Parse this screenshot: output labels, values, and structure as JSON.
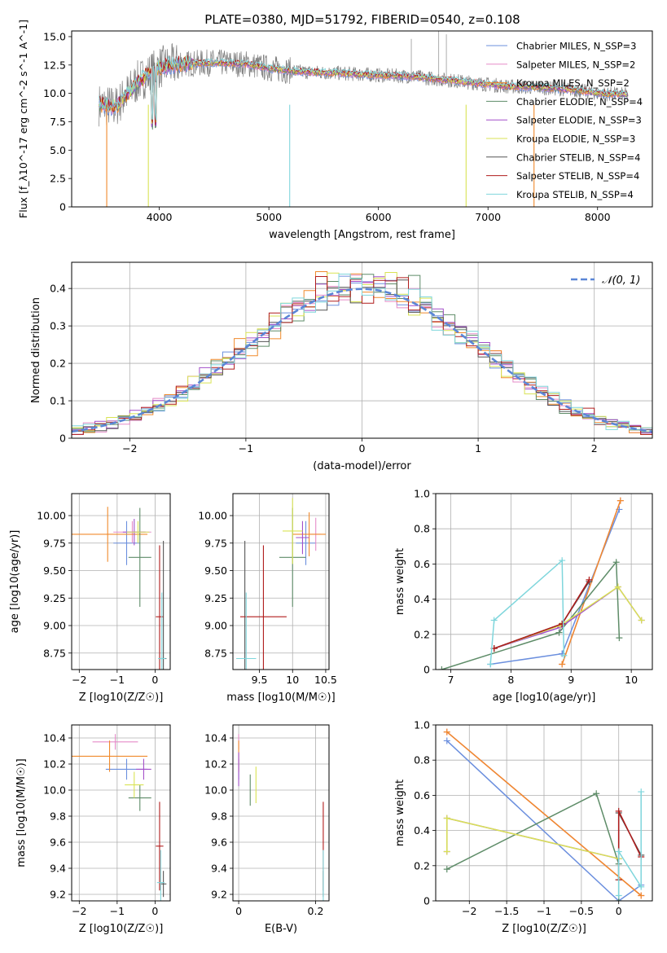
{
  "figure": {
    "title": "PLATE=0380, MJD=51792, FIBERID=0540, z=0.108"
  },
  "chart_data": [
    {
      "id": "spectrum",
      "type": "line",
      "xlabel": "wavelength [Angstrom, rest frame]",
      "ylabel": "Flux [f_λ10^-17 erg cm^-2 s^-1 A^-1]",
      "xlim": [
        3200,
        8500
      ],
      "ylim": [
        0,
        15.5
      ],
      "xticks": [
        4000,
        5000,
        6000,
        7000,
        8000
      ],
      "yticks": [
        0.0,
        2.5,
        5.0,
        7.5,
        10.0,
        12.5,
        15.0
      ],
      "grid": false,
      "legend": "top-right",
      "series": [
        {
          "name": "Chabrier MILES, N_SSP=3",
          "color": "#6b8fde"
        },
        {
          "name": "Salpeter MILES, N_SSP=2",
          "color": "#e58bc8"
        },
        {
          "name": "Kroupa MILES, N_SSP=2",
          "color": "#f08a2c"
        },
        {
          "name": "Chabrier ELODIE, N_SSP=4",
          "color": "#5e8c68"
        },
        {
          "name": "Salpeter ELODIE, N_SSP=3",
          "color": "#a34fc9"
        },
        {
          "name": "Kroupa ELODIE, N_SSP=3",
          "color": "#d9e354"
        },
        {
          "name": "Chabrier STELIB, N_SSP=4",
          "color": "#555555"
        },
        {
          "name": "Salpeter STELIB, N_SSP=4",
          "color": "#b01c1c"
        },
        {
          "name": "Kroupa STELIB, N_SSP=4",
          "color": "#7fd6dc"
        }
      ],
      "spectrum_model": {
        "x": [
          3450,
          3600,
          3800,
          4000,
          4200,
          4500,
          4800,
          5000,
          5300,
          5600,
          6000,
          6300,
          6600,
          6900,
          7200,
          7500,
          7800,
          8000,
          8250
        ],
        "y": [
          9.0,
          8.8,
          11.0,
          12.3,
          12.6,
          12.7,
          12.6,
          12.2,
          11.9,
          11.8,
          11.6,
          11.5,
          11.2,
          10.9,
          10.6,
          10.5,
          10.3,
          10.0,
          9.9
        ]
      },
      "observed_noise_amplitude": 2.4
    },
    {
      "id": "residuals",
      "type": "line",
      "xlabel": "(data-model)/error",
      "ylabel": "Normed distribution",
      "xlim": [
        -2.5,
        2.5
      ],
      "ylim": [
        0,
        0.47
      ],
      "xticks": [
        -2,
        -1,
        0,
        1,
        2
      ],
      "yticks": [
        0.0,
        0.1,
        0.2,
        0.3,
        0.4
      ],
      "grid": true,
      "legend": "top-right",
      "reference": {
        "name": "𝒩(0, 1)",
        "color": "#5b86d6"
      },
      "bin_width": 0.1
    },
    {
      "id": "age-vs-Z",
      "type": "scatter",
      "xlabel": "Z [log10(Z/Z☉)]",
      "ylabel": "age  [log10(age/yr)]",
      "xlim": [
        -2.2,
        0.4
      ],
      "ylim": [
        8.6,
        10.2
      ],
      "xticks": [
        -2,
        -1,
        0
      ],
      "yticks": [
        8.75,
        9.0,
        9.25,
        9.5,
        9.75,
        10.0
      ],
      "grid": true,
      "points": [
        {
          "name": "Chabrier MILES",
          "color": "#6b8fde",
          "x": -0.75,
          "y": 9.75,
          "xerr": 0.35,
          "yerr": 0.2
        },
        {
          "name": "Salpeter MILES",
          "color": "#e58bc8",
          "x": -0.6,
          "y": 9.85,
          "xerr": 0.5,
          "yerr": 0.1
        },
        {
          "name": "Kroupa MILES",
          "color": "#f08a2c",
          "x": -1.25,
          "y": 9.83,
          "xerr": 1.05,
          "yerr": 0.25
        },
        {
          "name": "Chabrier ELODIE",
          "color": "#5e8c68",
          "x": -0.4,
          "y": 9.62,
          "xerr": 0.3,
          "yerr": 0.45
        },
        {
          "name": "Salpeter ELODIE",
          "color": "#a34fc9",
          "x": -0.55,
          "y": 9.85,
          "xerr": 0.3,
          "yerr": 0.12
        },
        {
          "name": "Kroupa ELODIE",
          "color": "#d9e354",
          "x": -0.45,
          "y": 9.85,
          "xerr": 0.3,
          "yerr": 0.1
        },
        {
          "name": "Chabrier STELIB",
          "color": "#555555",
          "x": 0.22,
          "y": 8.7,
          "xerr": 0.08,
          "yerr": 1.07
        },
        {
          "name": "Salpeter STELIB",
          "color": "#b01c1c",
          "x": 0.12,
          "y": 9.08,
          "xerr": 0.1,
          "yerr": 0.65
        },
        {
          "name": "Kroupa STELIB",
          "color": "#7fd6dc",
          "x": 0.18,
          "y": 8.7,
          "xerr": 0.1,
          "yerr": 0.6
        }
      ]
    },
    {
      "id": "age-vs-mass",
      "type": "scatter",
      "xlabel": "mass [log10(M/M☉)]",
      "ylabel": "",
      "xlim": [
        9.1,
        10.55
      ],
      "ylim": [
        8.6,
        10.2
      ],
      "xticks": [
        9.5,
        10.0,
        10.5
      ],
      "yticks": [
        8.75,
        9.0,
        9.25,
        9.5,
        9.75,
        10.0
      ],
      "grid": true,
      "points": [
        {
          "name": "Chabrier MILES",
          "color": "#6b8fde",
          "x": 10.2,
          "y": 9.75,
          "xerr": 0.15,
          "yerr": 0.2
        },
        {
          "name": "Salpeter MILES",
          "color": "#e58bc8",
          "x": 10.35,
          "y": 9.83,
          "xerr": 0.08,
          "yerr": 0.15
        },
        {
          "name": "Kroupa MILES",
          "color": "#f08a2c",
          "x": 10.25,
          "y": 9.83,
          "xerr": 0.25,
          "yerr": 0.2
        },
        {
          "name": "Chabrier ELODIE",
          "color": "#5e8c68",
          "x": 10.0,
          "y": 9.62,
          "xerr": 0.2,
          "yerr": 0.45
        },
        {
          "name": "Salpeter ELODIE",
          "color": "#a34fc9",
          "x": 10.15,
          "y": 9.8,
          "xerr": 0.1,
          "yerr": 0.15
        },
        {
          "name": "Kroupa ELODIE",
          "color": "#d9e354",
          "x": 10.0,
          "y": 9.86,
          "xerr": 0.15,
          "yerr": 0.3
        },
        {
          "name": "Chabrier STELIB",
          "color": "#555555",
          "x": 9.28,
          "y": 8.7,
          "xerr": 0.1,
          "yerr": 1.07
        },
        {
          "name": "Salpeter STELIB",
          "color": "#b01c1c",
          "x": 9.56,
          "y": 9.08,
          "xerr": 0.35,
          "yerr": 0.65
        },
        {
          "name": "Kroupa STELIB",
          "color": "#7fd6dc",
          "x": 9.3,
          "y": 8.7,
          "xerr": 0.15,
          "yerr": 0.6
        }
      ]
    },
    {
      "id": "massweight-vs-age",
      "type": "line",
      "xlabel": "age  [log10(age/yr)]",
      "ylabel": "mass weight",
      "xlim": [
        6.75,
        10.35
      ],
      "ylim": [
        0.0,
        1.0
      ],
      "xticks": [
        7,
        8,
        9,
        10
      ],
      "yticks": [
        0.0,
        0.2,
        0.4,
        0.6,
        0.8,
        1.0
      ],
      "grid": true,
      "series": [
        {
          "name": "Chabrier MILES",
          "color": "#6b8fde",
          "x": [
            7.66,
            8.85,
            9.8
          ],
          "y": [
            0.03,
            0.09,
            0.91
          ]
        },
        {
          "name": "Salpeter MILES",
          "color": "#e58bc8",
          "x": [
            8.85,
            9.82
          ],
          "y": [
            0.03,
            0.96
          ]
        },
        {
          "name": "Kroupa MILES",
          "color": "#f08a2c",
          "x": [
            8.85,
            9.82
          ],
          "y": [
            0.03,
            0.96
          ]
        },
        {
          "name": "Chabrier ELODIE",
          "color": "#5e8c68",
          "x": [
            6.85,
            8.8,
            9.75,
            9.8
          ],
          "y": [
            0.0,
            0.21,
            0.61,
            0.18
          ]
        },
        {
          "name": "Salpeter ELODIE",
          "color": "#a34fc9",
          "x": [
            7.72,
            8.82,
            9.78,
            10.17
          ],
          "y": [
            0.12,
            0.24,
            0.47,
            0.28
          ]
        },
        {
          "name": "Kroupa ELODIE",
          "color": "#d9e354",
          "x": [
            7.72,
            8.82,
            9.78,
            10.17
          ],
          "y": [
            0.12,
            0.25,
            0.47,
            0.28
          ]
        },
        {
          "name": "Chabrier STELIB",
          "color": "#555555",
          "x": [
            7.72,
            8.85,
            9.3
          ],
          "y": [
            0.12,
            0.26,
            0.5
          ]
        },
        {
          "name": "Salpeter STELIB",
          "color": "#b01c1c",
          "x": [
            7.72,
            8.85,
            9.3
          ],
          "y": [
            0.12,
            0.26,
            0.51
          ]
        },
        {
          "name": "Kroupa STELIB",
          "color": "#7fd6dc",
          "x": [
            7.66,
            7.72,
            8.85,
            8.88
          ],
          "y": [
            0.03,
            0.28,
            0.62,
            0.08
          ]
        }
      ]
    },
    {
      "id": "mass-vs-Z",
      "type": "scatter",
      "xlabel": "Z [log10(Z/Z☉)]",
      "ylabel": "mass [log10(M/M☉)]",
      "xlim": [
        -2.2,
        0.4
      ],
      "ylim": [
        9.15,
        10.5
      ],
      "xticks": [
        -2,
        -1,
        0
      ],
      "yticks": [
        9.2,
        9.4,
        9.6,
        9.8,
        10.0,
        10.2,
        10.4
      ],
      "grid": true,
      "points": [
        {
          "name": "Chabrier MILES",
          "color": "#6b8fde",
          "x": -0.75,
          "y": 10.16,
          "xerr": 0.55,
          "yerr": 0.08
        },
        {
          "name": "Salpeter MILES",
          "color": "#e58bc8",
          "x": -1.05,
          "y": 10.37,
          "xerr": 0.6,
          "yerr": 0.06
        },
        {
          "name": "Kroupa MILES",
          "color": "#f08a2c",
          "x": -1.2,
          "y": 10.26,
          "xerr": 1.0,
          "yerr": 0.12
        },
        {
          "name": "Chabrier ELODIE",
          "color": "#5e8c68",
          "x": -0.4,
          "y": 9.94,
          "xerr": 0.3,
          "yerr": 0.1
        },
        {
          "name": "Salpeter ELODIE",
          "color": "#a34fc9",
          "x": -0.3,
          "y": 10.16,
          "xerr": 0.2,
          "yerr": 0.08
        },
        {
          "name": "Kroupa ELODIE",
          "color": "#d9e354",
          "x": -0.55,
          "y": 10.04,
          "xerr": 0.25,
          "yerr": 0.1
        },
        {
          "name": "Chabrier STELIB",
          "color": "#555555",
          "x": 0.22,
          "y": 9.28,
          "xerr": 0.08,
          "yerr": 0.1
        },
        {
          "name": "Salpeter STELIB",
          "color": "#b01c1c",
          "x": 0.12,
          "y": 9.57,
          "xerr": 0.1,
          "yerr": 0.34
        },
        {
          "name": "Kroupa STELIB",
          "color": "#7fd6dc",
          "x": 0.15,
          "y": 9.29,
          "xerr": 0.1,
          "yerr": 0.25
        }
      ]
    },
    {
      "id": "mass-vs-ebv",
      "type": "scatter",
      "xlabel": "E(B-V)",
      "ylabel": "",
      "xlim": [
        -0.015,
        0.235
      ],
      "ylim": [
        9.15,
        10.5
      ],
      "xticks": [
        0.0,
        0.2
      ],
      "yticks": [
        9.2,
        9.4,
        9.6,
        9.8,
        10.0,
        10.2,
        10.4
      ],
      "grid": true,
      "points": [
        {
          "name": "Chabrier MILES",
          "color": "#6b8fde",
          "x": 0.0,
          "y": 10.16,
          "xerr": 0,
          "yerr": 0.08
        },
        {
          "name": "Salpeter MILES",
          "color": "#e58bc8",
          "x": 0.0,
          "y": 10.37,
          "xerr": 0,
          "yerr": 0.06
        },
        {
          "name": "Kroupa MILES",
          "color": "#f08a2c",
          "x": 0.0,
          "y": 10.26,
          "xerr": 0,
          "yerr": 0.12
        },
        {
          "name": "Chabrier ELODIE",
          "color": "#5e8c68",
          "x": 0.03,
          "y": 10.0,
          "xerr": 0,
          "yerr": 0.12
        },
        {
          "name": "Salpeter ELODIE",
          "color": "#a34fc9",
          "x": 0.0,
          "y": 10.16,
          "xerr": 0,
          "yerr": 0.13
        },
        {
          "name": "Kroupa ELODIE",
          "color": "#d9e354",
          "x": 0.045,
          "y": 10.04,
          "xerr": 0,
          "yerr": 0.14
        },
        {
          "name": "Chabrier STELIB",
          "color": "#555555",
          "x": 0.22,
          "y": 9.28,
          "xerr": 0,
          "yerr": 0.1
        },
        {
          "name": "Salpeter STELIB",
          "color": "#b01c1c",
          "x": 0.22,
          "y": 9.57,
          "xerr": 0,
          "yerr": 0.34
        },
        {
          "name": "Kroupa STELIB",
          "color": "#7fd6dc",
          "x": 0.22,
          "y": 9.29,
          "xerr": 0,
          "yerr": 0.25
        }
      ]
    },
    {
      "id": "massweight-vs-Z",
      "type": "line",
      "xlabel": "Z [log10(Z/Z☉)]",
      "ylabel": "mass weight",
      "xlim": [
        -2.45,
        0.45
      ],
      "ylim": [
        0.0,
        1.0
      ],
      "xticks": [
        -2.0,
        -1.5,
        -1.0,
        -0.5,
        0.0
      ],
      "yticks": [
        0.0,
        0.2,
        0.4,
        0.6,
        0.8,
        1.0
      ],
      "grid": true,
      "series": [
        {
          "name": "Chabrier MILES",
          "color": "#6b8fde",
          "x": [
            -2.3,
            0.0,
            0.3
          ],
          "y": [
            0.91,
            0.0,
            0.09
          ]
        },
        {
          "name": "Salpeter MILES",
          "color": "#e58bc8",
          "x": [
            -2.3,
            0.3
          ],
          "y": [
            0.96,
            0.03
          ]
        },
        {
          "name": "Kroupa MILES",
          "color": "#f08a2c",
          "x": [
            -2.3,
            0.3
          ],
          "y": [
            0.96,
            0.03
          ]
        },
        {
          "name": "Chabrier ELODIE",
          "color": "#5e8c68",
          "x": [
            -2.3,
            -0.3,
            0.0,
            0.0
          ],
          "y": [
            0.18,
            0.61,
            0.21,
            0.0
          ]
        },
        {
          "name": "Salpeter ELODIE",
          "color": "#a34fc9",
          "x": [
            -2.3,
            -2.3,
            0.0,
            0.0
          ],
          "y": [
            0.28,
            0.47,
            0.24,
            0.12
          ]
        },
        {
          "name": "Kroupa ELODIE",
          "color": "#d9e354",
          "x": [
            -2.3,
            -2.3,
            0.0,
            0.0
          ],
          "y": [
            0.28,
            0.47,
            0.24,
            0.12
          ]
        },
        {
          "name": "Chabrier STELIB",
          "color": "#555555",
          "x": [
            0.0,
            0.0,
            0.3
          ],
          "y": [
            0.12,
            0.5,
            0.26
          ]
        },
        {
          "name": "Salpeter STELIB",
          "color": "#b01c1c",
          "x": [
            0.0,
            0.0,
            0.3
          ],
          "y": [
            0.12,
            0.51,
            0.25
          ]
        },
        {
          "name": "Kroupa STELIB",
          "color": "#7fd6dc",
          "x": [
            0.0,
            0.0,
            0.3,
            0.3
          ],
          "y": [
            0.03,
            0.28,
            0.08,
            0.62
          ]
        }
      ]
    }
  ]
}
